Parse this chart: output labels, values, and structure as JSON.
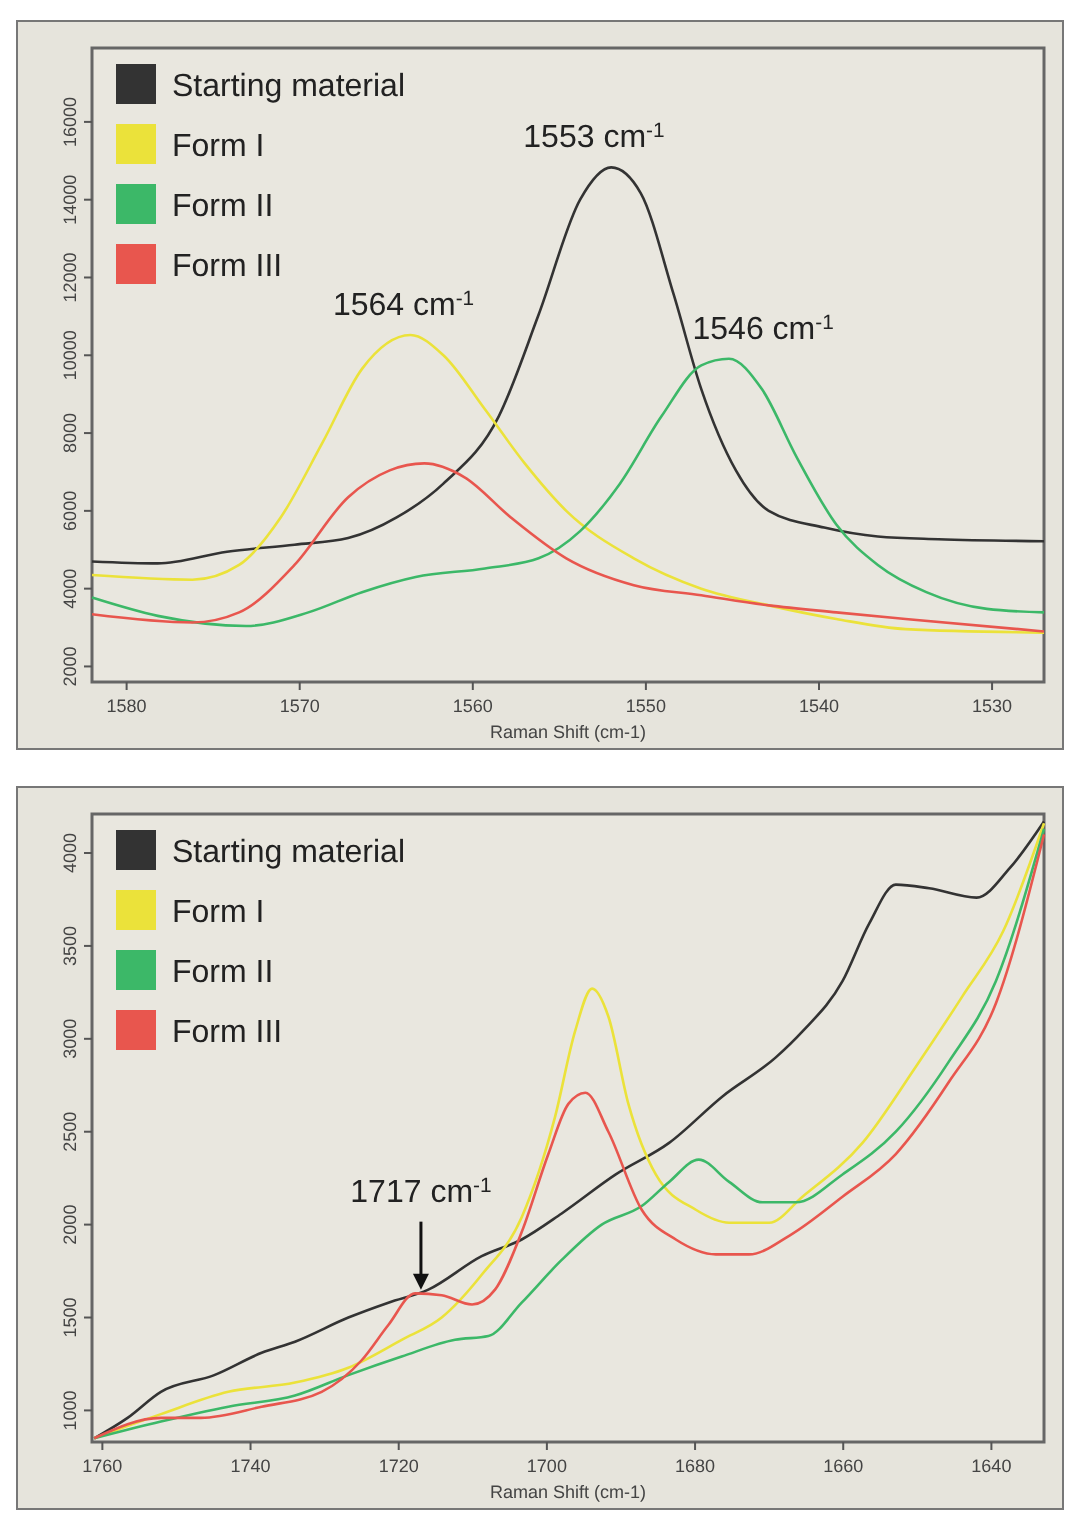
{
  "chart_data": [
    {
      "type": "line",
      "xlabel": "Raman Shift (cm-1)",
      "xlim": [
        1582,
        1527
      ],
      "ylim": [
        1600,
        17900
      ],
      "xticks": [
        1580,
        1570,
        1560,
        1550,
        1540,
        1530
      ],
      "yticks": [
        2000,
        4000,
        6000,
        8000,
        10000,
        12000,
        14000,
        16000
      ],
      "legend": "top left",
      "grid": false,
      "series": [
        {
          "name": "Starting material",
          "color": "#333333",
          "x": [
            1582,
            1578.2,
            1574.2,
            1570.3,
            1567.2,
            1564.4,
            1561.7,
            1558.5,
            1556.2,
            1553.8,
            1552,
            1550.3,
            1548.4,
            1546.8,
            1544.8,
            1542.9,
            1539.7,
            1536.6,
            1533.1,
            1527
          ],
          "values": [
            4700,
            4650,
            4950,
            5130,
            5300,
            5830,
            6700,
            8430,
            11040,
            14000,
            14830,
            14170,
            11570,
            9130,
            7040,
            6000,
            5570,
            5340,
            5270,
            5220
          ]
        },
        {
          "name": "Form I",
          "color": "#ebe23a",
          "x": [
            1582,
            1576.2,
            1573.5,
            1571.1,
            1568.7,
            1566.4,
            1563.6,
            1561.7,
            1559.3,
            1557,
            1554.6,
            1550.7,
            1546.8,
            1542.9,
            1539,
            1535,
            1527
          ],
          "values": [
            4350,
            4230,
            4610,
            5830,
            7740,
            9650,
            10520,
            10000,
            8610,
            7220,
            6000,
            4780,
            4000,
            3570,
            3220,
            2960,
            2870
          ]
        },
        {
          "name": "Form II",
          "color": "#3cb868",
          "x": [
            1582,
            1578.2,
            1573.1,
            1569.5,
            1566.4,
            1563.3,
            1559.3,
            1556.2,
            1553.8,
            1551.5,
            1549.1,
            1546.8,
            1545.2,
            1543.3,
            1541.3,
            1539,
            1536.6,
            1533.8,
            1530.3,
            1527
          ],
          "values": [
            3770,
            3300,
            3040,
            3390,
            3910,
            4300,
            4520,
            4780,
            5480,
            6700,
            8430,
            9740,
            9910,
            9130,
            7390,
            5650,
            4610,
            3910,
            3480,
            3390
          ]
        },
        {
          "name": "Form III",
          "color": "#e8564e",
          "x": [
            1582,
            1576.2,
            1573.5,
            1570.3,
            1567.2,
            1564.8,
            1562.8,
            1560.5,
            1557.8,
            1554.6,
            1550.7,
            1546.8,
            1542.9,
            1539,
            1535,
            1527
          ],
          "values": [
            3340,
            3130,
            3390,
            4610,
            6350,
            7040,
            7220,
            6870,
            5830,
            4780,
            4090,
            3830,
            3570,
            3390,
            3220,
            2900
          ]
        }
      ],
      "annotations": [
        {
          "text": "1564 cm$^{-1}$",
          "x": 1564,
          "y": 10520
        },
        {
          "text": "1553 cm$^{-1}$",
          "x": 1553,
          "y": 14830
        },
        {
          "text": "1546 cm$^{-1}$",
          "x": 1546,
          "y": 9910
        }
      ]
    },
    {
      "type": "line",
      "xlabel": "Raman Shift (cm-1)",
      "xlim": [
        1761.4,
        1632.9
      ],
      "ylim": [
        830,
        4210
      ],
      "xticks": [
        1760,
        1740,
        1720,
        1700,
        1680,
        1660,
        1640
      ],
      "yticks": [
        1000,
        1500,
        2000,
        2500,
        3000,
        3500,
        4000
      ],
      "legend": "top left",
      "grid": false,
      "series": [
        {
          "name": "Starting material",
          "color": "#333333",
          "x": [
            1761.1,
            1756.6,
            1752.1,
            1744.9,
            1738.5,
            1734,
            1726.8,
            1721.4,
            1716,
            1708.8,
            1703.4,
            1698,
            1690.7,
            1683.5,
            1676.3,
            1669.1,
            1665.5,
            1660.1,
            1656.5,
            1652.9,
            1648.4,
            1642,
            1637.5,
            1632.9
          ],
          "values": [
            850,
            960,
            1100,
            1190,
            1310,
            1370,
            1500,
            1580,
            1650,
            1830,
            1920,
            2060,
            2270,
            2440,
            2690,
            2900,
            3040,
            3310,
            3620,
            3830,
            3810,
            3760,
            3920,
            4170
          ]
        },
        {
          "name": "Form I",
          "color": "#ebe23a",
          "x": [
            1761.1,
            1752.1,
            1743,
            1734,
            1726.8,
            1719.6,
            1714.2,
            1708.8,
            1703.4,
            1698.9,
            1696.2,
            1693.9,
            1691.7,
            1689,
            1685.3,
            1679.9,
            1675.4,
            1670,
            1665.5,
            1657.4,
            1650.2,
            1643.9,
            1638.4,
            1632.9
          ],
          "values": [
            850,
            980,
            1100,
            1150,
            1230,
            1380,
            1500,
            1730,
            2040,
            2580,
            3040,
            3270,
            3120,
            2650,
            2270,
            2080,
            2010,
            2010,
            2150,
            2440,
            2850,
            3230,
            3580,
            4160
          ]
        },
        {
          "name": "Form II",
          "color": "#3cb868",
          "x": [
            1761.1,
            1752.1,
            1743,
            1734,
            1726.8,
            1719.6,
            1712.4,
            1707.9,
            1703.4,
            1698,
            1692.6,
            1687.2,
            1683.5,
            1679.5,
            1675.4,
            1670.9,
            1666.4,
            1660.1,
            1652.9,
            1645.7,
            1639.4,
            1632.9
          ],
          "values": [
            850,
            940,
            1020,
            1080,
            1190,
            1290,
            1380,
            1400,
            1580,
            1810,
            2000,
            2100,
            2230,
            2350,
            2230,
            2120,
            2120,
            2270,
            2500,
            2880,
            3310,
            4130
          ]
        },
        {
          "name": "Form III",
          "color": "#e8564e",
          "x": [
            1761.1,
            1752.1,
            1746.7,
            1738.5,
            1730.4,
            1725,
            1721.4,
            1717.8,
            1714.2,
            1710.1,
            1707,
            1703.4,
            1699.8,
            1697.1,
            1694.8,
            1691.7,
            1687.2,
            1682.6,
            1677.2,
            1672.7,
            1667.3,
            1660.1,
            1652.9,
            1645.7,
            1639.4,
            1632.9
          ],
          "values": [
            850,
            960,
            960,
            1020,
            1100,
            1270,
            1460,
            1630,
            1620,
            1570,
            1650,
            1960,
            2380,
            2650,
            2710,
            2500,
            2080,
            1920,
            1840,
            1840,
            1940,
            2150,
            2380,
            2770,
            3190,
            4100
          ]
        }
      ],
      "annotations": [
        {
          "text": "1717 cm$^{-1}$",
          "x": 1717,
          "y": 1650
        }
      ]
    }
  ]
}
